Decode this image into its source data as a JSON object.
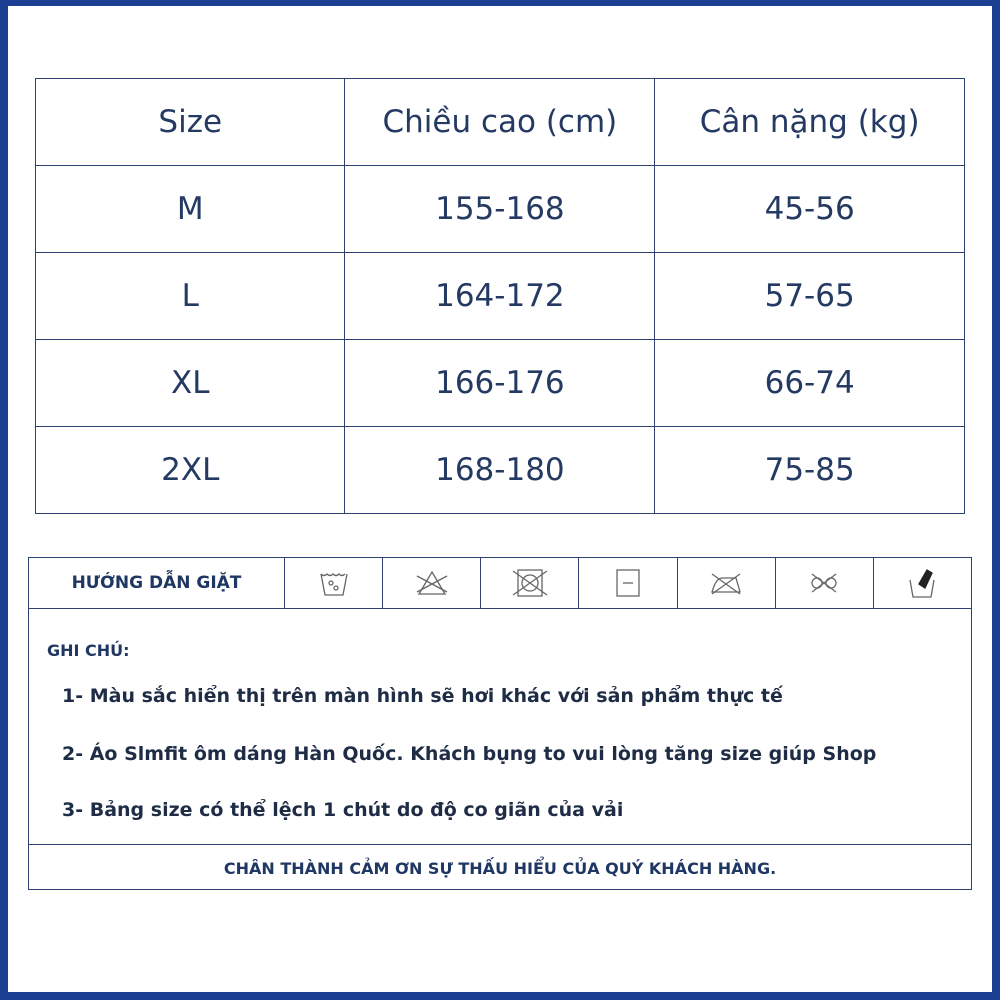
{
  "size_table": {
    "headers": [
      "Size",
      "Chiều cao (cm)",
      "Cân nặng (kg)"
    ],
    "rows": [
      [
        "M",
        "155-168",
        "45-56"
      ],
      [
        "L",
        "164-172",
        "57-65"
      ],
      [
        "XL",
        "166-176",
        "66-74"
      ],
      [
        "2XL",
        "168-180",
        "75-85"
      ]
    ]
  },
  "care": {
    "label": "HƯỚNG DẪN GIẶT",
    "icons": [
      "hand-wash-icon",
      "no-bleach-icon",
      "no-tumble-dry-icon",
      "flat-dry-icon",
      "no-iron-icon",
      "no-dry-clean-icon",
      "hand-wash-bucket-icon"
    ],
    "notes_title": "GHI CHÚ:",
    "notes": [
      "1- Màu sắc hiển thị trên màn hình sẽ hơi khác với sản phẩm thực tế",
      "2- Áo Slmfit ôm dáng Hàn Quốc. Khách bụng to vui lòng tăng size giúp Shop",
      "3- Bảng size có thể lệch 1 chút do độ co giãn của vải"
    ],
    "footer": "CHÂN THÀNH CẢM ƠN SỰ THẤU HIỂU CỦA QUÝ KHÁCH HÀNG."
  },
  "colors": {
    "frame": "#1c3f94",
    "text": "#243a63"
  }
}
